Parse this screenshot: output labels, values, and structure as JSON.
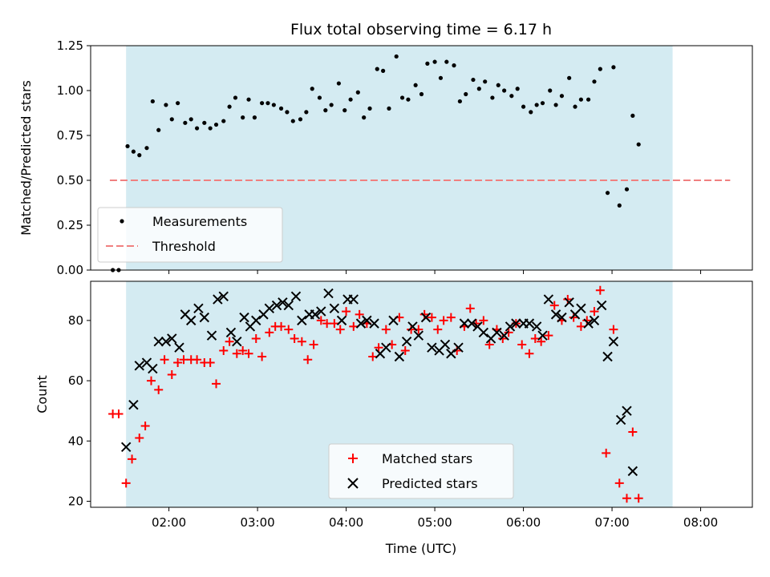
{
  "colors": {
    "window": "#add8e6",
    "measurement": "#000000",
    "threshold": "#f08080",
    "matched": "#ff0000",
    "predicted": "#000000"
  },
  "chart_data": [
    {
      "type": "scatter",
      "title": "Flux total observing time = 6.17 h",
      "xlabel": "",
      "ylabel": "Matched/Predicted stars",
      "x_unit": "hours UTC",
      "xlim": [
        "01:07",
        "08:35"
      ],
      "ylim": [
        0,
        1.25
      ],
      "yticks": [
        0.0,
        0.25,
        0.5,
        0.75,
        1.0,
        1.25
      ],
      "ytick_labels": [
        "0.00",
        "0.25",
        "0.50",
        "0.75",
        "1.00",
        "1.25"
      ],
      "shaded_window": [
        "01:31",
        "07:41"
      ],
      "threshold": {
        "y": 0.5,
        "x_range": [
          "01:20",
          "08:20"
        ]
      },
      "legend_position": "lower-left",
      "series": [
        {
          "name": "Measurements",
          "marker": "dot",
          "points": [
            [
              "01:22",
              0.0
            ],
            [
              "01:26",
              0.0
            ],
            [
              "01:32",
              0.69
            ],
            [
              "01:36",
              0.66
            ],
            [
              "01:40",
              0.64
            ],
            [
              "01:45",
              0.68
            ],
            [
              "01:49",
              0.94
            ],
            [
              "01:53",
              0.78
            ],
            [
              "01:58",
              0.92
            ],
            [
              "02:02",
              0.84
            ],
            [
              "02:06",
              0.93
            ],
            [
              "02:11",
              0.82
            ],
            [
              "02:15",
              0.84
            ],
            [
              "02:19",
              0.79
            ],
            [
              "02:24",
              0.82
            ],
            [
              "02:28",
              0.79
            ],
            [
              "02:32",
              0.81
            ],
            [
              "02:37",
              0.83
            ],
            [
              "02:41",
              0.91
            ],
            [
              "02:45",
              0.96
            ],
            [
              "02:50",
              0.85
            ],
            [
              "02:54",
              0.95
            ],
            [
              "02:58",
              0.85
            ],
            [
              "03:03",
              0.93
            ],
            [
              "03:07",
              0.93
            ],
            [
              "03:11",
              0.92
            ],
            [
              "03:16",
              0.9
            ],
            [
              "03:20",
              0.88
            ],
            [
              "03:24",
              0.83
            ],
            [
              "03:29",
              0.84
            ],
            [
              "03:33",
              0.88
            ],
            [
              "03:37",
              1.01
            ],
            [
              "03:42",
              0.96
            ],
            [
              "03:46",
              0.89
            ],
            [
              "03:50",
              0.92
            ],
            [
              "03:55",
              1.04
            ],
            [
              "03:59",
              0.89
            ],
            [
              "04:03",
              0.95
            ],
            [
              "04:08",
              0.99
            ],
            [
              "04:12",
              0.85
            ],
            [
              "04:16",
              0.9
            ],
            [
              "04:21",
              1.12
            ],
            [
              "04:25",
              1.11
            ],
            [
              "04:29",
              0.9
            ],
            [
              "04:34",
              1.19
            ],
            [
              "04:38",
              0.96
            ],
            [
              "04:42",
              0.95
            ],
            [
              "04:47",
              1.03
            ],
            [
              "04:51",
              0.98
            ],
            [
              "04:55",
              1.15
            ],
            [
              "05:00",
              1.16
            ],
            [
              "05:04",
              1.07
            ],
            [
              "05:08",
              1.16
            ],
            [
              "05:13",
              1.14
            ],
            [
              "05:17",
              0.94
            ],
            [
              "05:21",
              0.98
            ],
            [
              "05:26",
              1.06
            ],
            [
              "05:30",
              1.01
            ],
            [
              "05:34",
              1.05
            ],
            [
              "05:39",
              0.96
            ],
            [
              "05:43",
              1.03
            ],
            [
              "05:47",
              1.0
            ],
            [
              "05:52",
              0.97
            ],
            [
              "05:56",
              1.01
            ],
            [
              "06:00",
              0.91
            ],
            [
              "06:05",
              0.88
            ],
            [
              "06:09",
              0.92
            ],
            [
              "06:13",
              0.93
            ],
            [
              "06:18",
              1.0
            ],
            [
              "06:22",
              0.92
            ],
            [
              "06:26",
              0.97
            ],
            [
              "06:31",
              1.07
            ],
            [
              "06:35",
              0.91
            ],
            [
              "06:39",
              0.95
            ],
            [
              "06:44",
              0.95
            ],
            [
              "06:48",
              1.05
            ],
            [
              "06:52",
              1.12
            ],
            [
              "06:57",
              0.43
            ],
            [
              "07:01",
              1.13
            ],
            [
              "07:05",
              0.36
            ],
            [
              "07:10",
              0.45
            ],
            [
              "07:14",
              0.86
            ],
            [
              "07:18",
              0.7
            ]
          ]
        },
        {
          "name": "Threshold",
          "marker": "dashed-line"
        }
      ]
    },
    {
      "type": "scatter",
      "title": "",
      "xlabel": "Time (UTC)",
      "ylabel": "Count",
      "xlim": [
        "01:07",
        "08:35"
      ],
      "ylim": [
        18,
        93
      ],
      "yticks": [
        20,
        40,
        60,
        80
      ],
      "ytick_labels": [
        "20",
        "40",
        "60",
        "80"
      ],
      "xticks": [
        "02:00",
        "03:00",
        "04:00",
        "05:00",
        "06:00",
        "07:00",
        "08:00"
      ],
      "xtick_labels": [
        "02:00",
        "03:00",
        "04:00",
        "05:00",
        "06:00",
        "07:00",
        "08:00"
      ],
      "shaded_window": [
        "01:31",
        "07:41"
      ],
      "legend_position": "lower-center",
      "series": [
        {
          "name": "Matched stars",
          "marker": "plus",
          "points": [
            [
              "01:22",
              49
            ],
            [
              "01:26",
              49
            ],
            [
              "01:31",
              26
            ],
            [
              "01:35",
              34
            ],
            [
              "01:40",
              41
            ],
            [
              "01:44",
              45
            ],
            [
              "01:48",
              60
            ],
            [
              "01:53",
              57
            ],
            [
              "01:57",
              67
            ],
            [
              "02:02",
              62
            ],
            [
              "02:06",
              66
            ],
            [
              "02:10",
              67
            ],
            [
              "02:15",
              67
            ],
            [
              "02:19",
              67
            ],
            [
              "02:24",
              66
            ],
            [
              "02:28",
              66
            ],
            [
              "02:32",
              59
            ],
            [
              "02:37",
              70
            ],
            [
              "02:41",
              73
            ],
            [
              "02:46",
              69
            ],
            [
              "02:50",
              70
            ],
            [
              "02:54",
              69
            ],
            [
              "02:59",
              74
            ],
            [
              "03:03",
              68
            ],
            [
              "03:08",
              76
            ],
            [
              "03:12",
              78
            ],
            [
              "03:16",
              78
            ],
            [
              "03:21",
              77
            ],
            [
              "03:25",
              74
            ],
            [
              "03:30",
              73
            ],
            [
              "03:34",
              67
            ],
            [
              "03:38",
              72
            ],
            [
              "03:43",
              80
            ],
            [
              "03:47",
              79
            ],
            [
              "03:52",
              79
            ],
            [
              "03:56",
              77
            ],
            [
              "04:00",
              83
            ],
            [
              "04:05",
              78
            ],
            [
              "04:09",
              82
            ],
            [
              "04:14",
              79
            ],
            [
              "04:18",
              68
            ],
            [
              "04:22",
              71
            ],
            [
              "04:27",
              77
            ],
            [
              "04:31",
              72
            ],
            [
              "04:36",
              81
            ],
            [
              "04:40",
              70
            ],
            [
              "04:44",
              77
            ],
            [
              "04:49",
              77
            ],
            [
              "04:53",
              82
            ],
            [
              "04:58",
              81
            ],
            [
              "05:02",
              77
            ],
            [
              "05:06",
              80
            ],
            [
              "05:11",
              81
            ],
            [
              "05:15",
              70
            ],
            [
              "05:20",
              78
            ],
            [
              "05:24",
              84
            ],
            [
              "05:28",
              79
            ],
            [
              "05:33",
              80
            ],
            [
              "05:37",
              72
            ],
            [
              "05:42",
              77
            ],
            [
              "05:46",
              74
            ],
            [
              "05:50",
              76
            ],
            [
              "05:55",
              79
            ],
            [
              "05:59",
              72
            ],
            [
              "06:04",
              69
            ],
            [
              "06:08",
              74
            ],
            [
              "06:12",
              73
            ],
            [
              "06:17",
              75
            ],
            [
              "06:21",
              85
            ],
            [
              "06:26",
              80
            ],
            [
              "06:30",
              87
            ],
            [
              "06:34",
              81
            ],
            [
              "06:39",
              78
            ],
            [
              "06:43",
              80
            ],
            [
              "06:48",
              83
            ],
            [
              "06:52",
              90
            ],
            [
              "06:56",
              36
            ],
            [
              "07:01",
              77
            ],
            [
              "07:05",
              26
            ],
            [
              "07:10",
              21
            ],
            [
              "07:14",
              43
            ],
            [
              "07:18",
              21
            ]
          ]
        },
        {
          "name": "Predicted stars",
          "marker": "x",
          "points": [
            [
              "01:31",
              38
            ],
            [
              "01:36",
              52
            ],
            [
              "01:40",
              65
            ],
            [
              "01:45",
              66
            ],
            [
              "01:49",
              64
            ],
            [
              "01:53",
              73
            ],
            [
              "01:58",
              73
            ],
            [
              "02:02",
              74
            ],
            [
              "02:07",
              71
            ],
            [
              "02:11",
              82
            ],
            [
              "02:15",
              80
            ],
            [
              "02:20",
              84
            ],
            [
              "02:24",
              81
            ],
            [
              "02:29",
              75
            ],
            [
              "02:33",
              87
            ],
            [
              "02:37",
              88
            ],
            [
              "02:42",
              76
            ],
            [
              "02:46",
              73
            ],
            [
              "02:51",
              81
            ],
            [
              "02:55",
              78
            ],
            [
              "02:59",
              80
            ],
            [
              "03:04",
              82
            ],
            [
              "03:08",
              84
            ],
            [
              "03:13",
              85
            ],
            [
              "03:17",
              86
            ],
            [
              "03:21",
              85
            ],
            [
              "03:26",
              88
            ],
            [
              "03:30",
              80
            ],
            [
              "03:35",
              82
            ],
            [
              "03:39",
              82
            ],
            [
              "03:43",
              83
            ],
            [
              "03:48",
              89
            ],
            [
              "03:52",
              84
            ],
            [
              "03:57",
              80
            ],
            [
              "04:01",
              87
            ],
            [
              "04:05",
              87
            ],
            [
              "04:10",
              79
            ],
            [
              "04:14",
              80
            ],
            [
              "04:19",
              79
            ],
            [
              "04:23",
              69
            ],
            [
              "04:27",
              71
            ],
            [
              "04:32",
              80
            ],
            [
              "04:36",
              68
            ],
            [
              "04:41",
              73
            ],
            [
              "04:45",
              78
            ],
            [
              "04:49",
              75
            ],
            [
              "04:54",
              81
            ],
            [
              "04:58",
              71
            ],
            [
              "05:03",
              70
            ],
            [
              "05:07",
              72
            ],
            [
              "05:11",
              69
            ],
            [
              "05:16",
              71
            ],
            [
              "05:20",
              79
            ],
            [
              "05:25",
              79
            ],
            [
              "05:29",
              78
            ],
            [
              "05:33",
              76
            ],
            [
              "05:38",
              74
            ],
            [
              "05:42",
              76
            ],
            [
              "05:47",
              75
            ],
            [
              "05:51",
              78
            ],
            [
              "05:55",
              79
            ],
            [
              "06:00",
              79
            ],
            [
              "06:04",
              79
            ],
            [
              "06:09",
              78
            ],
            [
              "06:13",
              75
            ],
            [
              "06:17",
              87
            ],
            [
              "06:22",
              82
            ],
            [
              "06:26",
              81
            ],
            [
              "06:31",
              86
            ],
            [
              "06:35",
              82
            ],
            [
              "06:39",
              84
            ],
            [
              "06:44",
              79
            ],
            [
              "06:48",
              80
            ],
            [
              "06:53",
              85
            ],
            [
              "06:57",
              68
            ],
            [
              "07:01",
              73
            ],
            [
              "07:06",
              47
            ],
            [
              "07:10",
              50
            ],
            [
              "07:14",
              30
            ]
          ]
        }
      ]
    }
  ]
}
